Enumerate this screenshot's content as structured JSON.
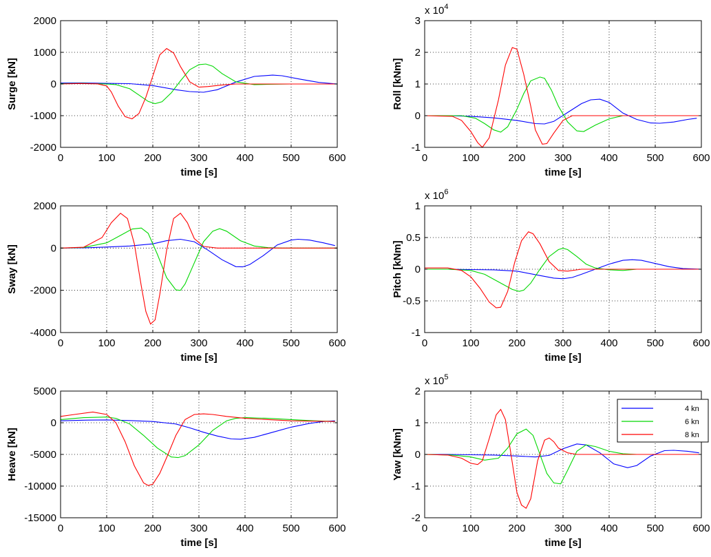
{
  "colors": {
    "4 kn": "#0000ff",
    "6 kn": "#00d800",
    "8 kn": "#ff0000"
  },
  "chart_data": [
    {
      "type": "line",
      "id": "surge",
      "title": "",
      "xlabel": "time [s]",
      "ylabel": "Surge [kN]",
      "xlim": [
        0,
        600
      ],
      "ylim": [
        -2000,
        2000
      ],
      "grid": true,
      "exponent": "",
      "xticks": [
        0,
        100,
        200,
        300,
        400,
        500,
        600
      ],
      "xtick_labels": [
        "0",
        "100",
        "200",
        "300",
        "400",
        "500",
        "600"
      ],
      "yticks": [
        -2000,
        -1000,
        0,
        1000,
        2000
      ],
      "ytick_labels": [
        "-2000",
        "-1000",
        "0",
        "1000",
        "2000"
      ],
      "series": [
        {
          "name": "4 kn",
          "color": "#0000ff",
          "x": [
            0,
            50,
            100,
            150,
            200,
            250,
            280,
            310,
            340,
            380,
            420,
            460,
            480,
            520,
            560,
            600
          ],
          "y": [
            30,
            35,
            20,
            10,
            -50,
            -180,
            -240,
            -260,
            -180,
            60,
            240,
            280,
            260,
            150,
            50,
            0
          ]
        },
        {
          "name": "6 kn",
          "color": "#00d800",
          "x": [
            0,
            50,
            100,
            120,
            150,
            170,
            190,
            205,
            220,
            240,
            260,
            280,
            300,
            315,
            330,
            350,
            380,
            420,
            450,
            500,
            600
          ],
          "y": [
            10,
            20,
            0,
            -20,
            -150,
            -350,
            -550,
            -620,
            -560,
            -280,
            100,
            450,
            610,
            630,
            560,
            330,
            70,
            -20,
            -10,
            0,
            0
          ]
        },
        {
          "name": "8 kn",
          "color": "#ff0000",
          "x": [
            0,
            40,
            80,
            100,
            110,
            125,
            140,
            155,
            170,
            185,
            200,
            215,
            230,
            245,
            260,
            280,
            300,
            320,
            350,
            380,
            600
          ],
          "y": [
            0,
            15,
            5,
            -60,
            -250,
            -700,
            -1030,
            -1100,
            -930,
            -420,
            250,
            920,
            1120,
            980,
            550,
            70,
            -100,
            -80,
            -30,
            0,
            0
          ]
        }
      ]
    },
    {
      "type": "line",
      "id": "roll",
      "title": "",
      "xlabel": "time [s]",
      "ylabel": "Roll [kNm]",
      "xlim": [
        0,
        600
      ],
      "ylim": [
        -1,
        3
      ],
      "grid": true,
      "exponent": "4",
      "xticks": [
        0,
        100,
        200,
        300,
        400,
        500,
        600
      ],
      "xtick_labels": [
        "0",
        "100",
        "200",
        "300",
        "400",
        "500",
        "600"
      ],
      "yticks": [
        -1,
        0,
        1,
        2,
        3
      ],
      "ytick_labels": [
        "-1",
        "0",
        "1",
        "2",
        "3"
      ],
      "series": [
        {
          "name": "4 kn",
          "color": "#0000ff",
          "x": [
            0,
            50,
            100,
            150,
            200,
            240,
            260,
            280,
            310,
            340,
            360,
            380,
            400,
            430,
            460,
            490,
            510,
            540,
            570,
            590
          ],
          "y": [
            0,
            0,
            -0.02,
            -0.07,
            -0.15,
            -0.25,
            -0.26,
            -0.18,
            0.1,
            0.38,
            0.5,
            0.52,
            0.42,
            0.08,
            -0.12,
            -0.23,
            -0.24,
            -0.2,
            -0.12,
            -0.08
          ]
        },
        {
          "name": "6 kn",
          "color": "#00d800",
          "x": [
            0,
            80,
            110,
            130,
            150,
            165,
            180,
            200,
            215,
            230,
            250,
            260,
            275,
            290,
            310,
            330,
            345,
            370,
            400,
            430,
            460,
            600
          ],
          "y": [
            0,
            0,
            -0.08,
            -0.25,
            -0.45,
            -0.52,
            -0.35,
            0.2,
            0.7,
            1.1,
            1.22,
            1.18,
            0.8,
            0.3,
            -0.2,
            -0.48,
            -0.5,
            -0.3,
            -0.1,
            0,
            0,
            0
          ]
        },
        {
          "name": "8 kn",
          "color": "#ff0000",
          "x": [
            0,
            60,
            80,
            100,
            115,
            125,
            140,
            160,
            175,
            190,
            200,
            215,
            230,
            240,
            255,
            265,
            280,
            300,
            320,
            600
          ],
          "y": [
            0,
            -0.02,
            -0.15,
            -0.5,
            -0.85,
            -1.0,
            -0.7,
            0.5,
            1.6,
            2.15,
            2.1,
            1.3,
            0.3,
            -0.45,
            -0.9,
            -0.88,
            -0.55,
            -0.15,
            0,
            0
          ]
        }
      ]
    },
    {
      "type": "line",
      "id": "sway",
      "title": "",
      "xlabel": "time [s]",
      "ylabel": "Sway [kN]",
      "xlim": [
        0,
        600
      ],
      "ylim": [
        -4000,
        2000
      ],
      "grid": true,
      "exponent": "",
      "xticks": [
        0,
        100,
        200,
        300,
        400,
        500,
        600
      ],
      "xtick_labels": [
        "0",
        "100",
        "200",
        "300",
        "400",
        "500",
        "600"
      ],
      "yticks": [
        -4000,
        -2000,
        0,
        2000
      ],
      "ytick_labels": [
        "-4000",
        "-2000",
        "0",
        "2000"
      ],
      "series": [
        {
          "name": "4 kn",
          "color": "#0000ff",
          "x": [
            0,
            50,
            100,
            150,
            200,
            230,
            260,
            290,
            320,
            350,
            380,
            395,
            410,
            440,
            470,
            500,
            515,
            540,
            570,
            595
          ],
          "y": [
            0,
            10,
            50,
            100,
            200,
            350,
            420,
            300,
            -100,
            -550,
            -880,
            -890,
            -780,
            -350,
            150,
            380,
            420,
            380,
            250,
            120
          ]
        },
        {
          "name": "6 kn",
          "color": "#00d800",
          "x": [
            0,
            50,
            100,
            130,
            155,
            175,
            190,
            210,
            230,
            250,
            260,
            270,
            290,
            310,
            330,
            345,
            360,
            390,
            420,
            450,
            480,
            600
          ],
          "y": [
            0,
            30,
            250,
            600,
            900,
            950,
            700,
            -300,
            -1400,
            -1980,
            -2000,
            -1700,
            -700,
            300,
            800,
            920,
            800,
            350,
            100,
            20,
            0,
            0
          ]
        },
        {
          "name": "8 kn",
          "color": "#ff0000",
          "x": [
            0,
            50,
            90,
            110,
            130,
            145,
            160,
            175,
            185,
            195,
            205,
            215,
            230,
            245,
            260,
            275,
            290,
            310,
            340,
            380,
            600
          ],
          "y": [
            0,
            40,
            500,
            1200,
            1650,
            1400,
            200,
            -1800,
            -3000,
            -3600,
            -3400,
            -2200,
            -100,
            1400,
            1650,
            1200,
            450,
            80,
            0,
            0,
            0
          ]
        }
      ]
    },
    {
      "type": "line",
      "id": "pitch",
      "title": "",
      "xlabel": "time [s]",
      "ylabel": "Pitch [kNm]",
      "xlim": [
        0,
        600
      ],
      "ylim": [
        -1,
        1
      ],
      "grid": true,
      "exponent": "6",
      "xticks": [
        0,
        100,
        200,
        300,
        400,
        500,
        600
      ],
      "xtick_labels": [
        "0",
        "100",
        "200",
        "300",
        "400",
        "500",
        "600"
      ],
      "yticks": [
        -1,
        -0.5,
        0,
        0.5,
        1
      ],
      "ytick_labels": [
        "-1",
        "-0.5",
        "0",
        "0.5",
        "1"
      ],
      "series": [
        {
          "name": "4 kn",
          "color": "#0000ff",
          "x": [
            0,
            50,
            100,
            150,
            200,
            250,
            280,
            300,
            320,
            340,
            370,
            400,
            430,
            450,
            470,
            500,
            530,
            560,
            600
          ],
          "y": [
            0,
            0,
            -0.005,
            -0.01,
            -0.03,
            -0.1,
            -0.14,
            -0.15,
            -0.13,
            -0.08,
            0,
            0.08,
            0.14,
            0.15,
            0.14,
            0.09,
            0.04,
            0.01,
            0
          ]
        },
        {
          "name": "6 kn",
          "color": "#00d800",
          "x": [
            0,
            50,
            100,
            130,
            160,
            190,
            205,
            215,
            230,
            250,
            270,
            290,
            300,
            310,
            330,
            350,
            370,
            400,
            430,
            460,
            600
          ],
          "y": [
            0,
            0,
            -0.02,
            -0.08,
            -0.2,
            -0.32,
            -0.35,
            -0.33,
            -0.22,
            0,
            0.2,
            0.31,
            0.33,
            0.31,
            0.2,
            0.08,
            0.02,
            -0.01,
            -0.02,
            0,
            0
          ]
        },
        {
          "name": "8 kn",
          "color": "#ff0000",
          "x": [
            0,
            50,
            80,
            100,
            120,
            140,
            155,
            165,
            180,
            195,
            210,
            225,
            235,
            250,
            270,
            290,
            310,
            340,
            380,
            600
          ],
          "y": [
            0.02,
            0.02,
            -0.02,
            -0.12,
            -0.3,
            -0.52,
            -0.61,
            -0.6,
            -0.35,
            0.1,
            0.45,
            0.59,
            0.56,
            0.4,
            0.12,
            -0.02,
            -0.03,
            0,
            0,
            0
          ]
        }
      ]
    },
    {
      "type": "line",
      "id": "heave",
      "title": "",
      "xlabel": "time [s]",
      "ylabel": "Heave [kN]",
      "xlim": [
        0,
        600
      ],
      "ylim": [
        -15000,
        5000
      ],
      "grid": true,
      "exponent": "",
      "xticks": [
        0,
        100,
        200,
        300,
        400,
        500,
        600
      ],
      "xtick_labels": [
        "0",
        "100",
        "200",
        "300",
        "400",
        "500",
        "600"
      ],
      "yticks": [
        -15000,
        -10000,
        -5000,
        0,
        5000
      ],
      "ytick_labels": [
        "-15000",
        "-10000",
        "-5000",
        "0",
        "5000"
      ],
      "series": [
        {
          "name": "4 kn",
          "color": "#0000ff",
          "x": [
            0,
            50,
            100,
            150,
            200,
            250,
            280,
            310,
            340,
            370,
            390,
            420,
            460,
            500,
            540,
            570,
            595
          ],
          "y": [
            300,
            400,
            450,
            350,
            200,
            -200,
            -800,
            -1500,
            -2100,
            -2550,
            -2600,
            -2300,
            -1500,
            -700,
            -100,
            200,
            300
          ]
        },
        {
          "name": "6 kn",
          "color": "#00d800",
          "x": [
            0,
            50,
            100,
            120,
            150,
            180,
            210,
            240,
            255,
            270,
            300,
            330,
            360,
            380,
            400,
            450,
            500,
            550,
            595
          ],
          "y": [
            500,
            800,
            900,
            700,
            -200,
            -2000,
            -4000,
            -5400,
            -5500,
            -5200,
            -3500,
            -1200,
            300,
            700,
            800,
            700,
            500,
            300,
            200
          ]
        },
        {
          "name": "8 kn",
          "color": "#ff0000",
          "x": [
            0,
            30,
            70,
            100,
            120,
            140,
            160,
            180,
            190,
            200,
            215,
            230,
            250,
            270,
            290,
            310,
            330,
            360,
            400,
            450,
            500,
            595
          ],
          "y": [
            1000,
            1300,
            1700,
            1300,
            0,
            -3000,
            -6800,
            -9500,
            -9900,
            -9700,
            -8000,
            -5500,
            -2000,
            500,
            1300,
            1400,
            1300,
            1000,
            700,
            500,
            300,
            200
          ]
        }
      ]
    },
    {
      "type": "line",
      "id": "yaw",
      "title": "",
      "xlabel": "time [s]",
      "ylabel": "Yaw [kNm]",
      "xlim": [
        0,
        600
      ],
      "ylim": [
        -2,
        2
      ],
      "grid": true,
      "exponent": "5",
      "legend": {
        "position": "top-right",
        "entries": [
          "4 kn",
          "6 kn",
          "8 kn"
        ]
      },
      "xticks": [
        0,
        100,
        200,
        300,
        400,
        500,
        600
      ],
      "xtick_labels": [
        "0",
        "100",
        "200",
        "300",
        "400",
        "500",
        "600"
      ],
      "yticks": [
        -2,
        -1,
        0,
        1,
        2
      ],
      "ytick_labels": [
        "-2",
        "-1",
        "0",
        "1",
        "2"
      ],
      "series": [
        {
          "name": "4 kn",
          "color": "#0000ff",
          "x": [
            0,
            50,
            100,
            150,
            200,
            240,
            270,
            300,
            330,
            350,
            380,
            410,
            440,
            460,
            490,
            520,
            540,
            570,
            595
          ],
          "y": [
            0,
            0,
            -0.01,
            -0.02,
            -0.05,
            -0.08,
            -0.03,
            0.18,
            0.33,
            0.3,
            0.05,
            -0.3,
            -0.42,
            -0.35,
            -0.05,
            0.12,
            0.13,
            0.1,
            0.05
          ]
        },
        {
          "name": "6 kn",
          "color": "#00d800",
          "x": [
            0,
            60,
            100,
            130,
            160,
            180,
            200,
            220,
            235,
            250,
            265,
            280,
            295,
            310,
            330,
            350,
            370,
            400,
            430,
            460,
            600
          ],
          "y": [
            0,
            -0.02,
            -0.08,
            -0.18,
            -0.12,
            0.2,
            0.65,
            0.8,
            0.6,
            0,
            -0.6,
            -0.9,
            -0.93,
            -0.5,
            0.1,
            0.3,
            0.25,
            0.1,
            0.02,
            0,
            0
          ]
        },
        {
          "name": "8 kn",
          "color": "#ff0000",
          "x": [
            0,
            50,
            80,
            100,
            115,
            125,
            140,
            155,
            165,
            175,
            185,
            200,
            210,
            220,
            230,
            245,
            260,
            270,
            280,
            290,
            310,
            330,
            360,
            600
          ],
          "y": [
            0,
            -0.02,
            -0.12,
            -0.28,
            -0.32,
            -0.2,
            0.5,
            1.25,
            1.42,
            1.1,
            0.2,
            -1.2,
            -1.6,
            -1.7,
            -1.4,
            -0.2,
            0.45,
            0.52,
            0.4,
            0.2,
            0.05,
            0,
            0,
            0
          ]
        }
      ]
    }
  ]
}
